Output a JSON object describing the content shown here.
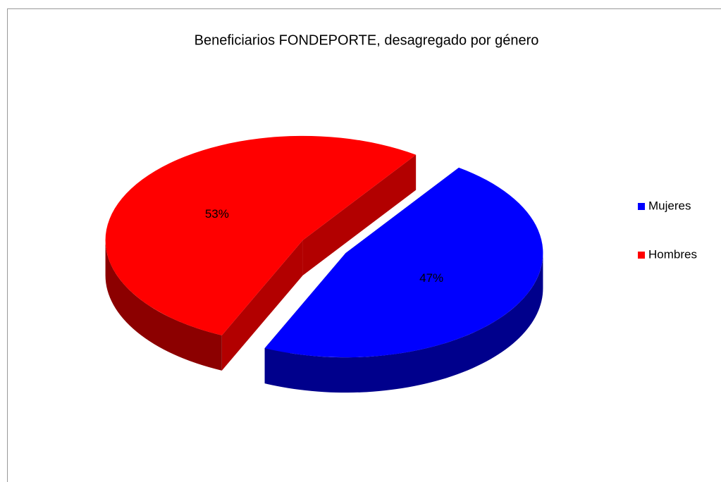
{
  "chart_data": {
    "type": "pie",
    "title": "Beneficiarios FONDEPORTE,  desagregado por género",
    "categories": [
      "Mujeres",
      "Hombres"
    ],
    "values": [
      47,
      53
    ],
    "value_labels": [
      "47%",
      "53%"
    ],
    "colors": [
      "#0000ff",
      "#ff0000"
    ],
    "legend": "right"
  }
}
